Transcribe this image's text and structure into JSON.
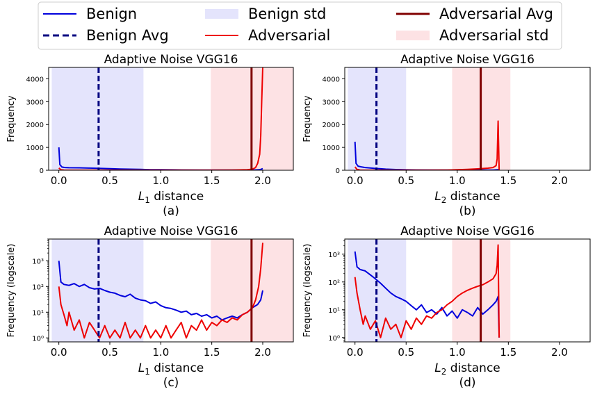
{
  "legend": {
    "placement": "top-center",
    "columns": 3,
    "entries": [
      {
        "label": "Benign",
        "style": "solid-line",
        "color": "#0000dd"
      },
      {
        "label": "Benign Avg",
        "style": "dashed-line",
        "color": "#000080"
      },
      {
        "label": "Benign std",
        "style": "patch",
        "color": "#e4e4fc"
      },
      {
        "label": "Adversarial",
        "style": "solid-line",
        "color": "#ee0000"
      },
      {
        "label": "Adversarial Avg",
        "style": "solid-line",
        "color": "#800000"
      },
      {
        "label": "Adversarial std",
        "style": "patch",
        "color": "#fde2e4"
      }
    ]
  },
  "colors": {
    "benign": "#0000dd",
    "adversarial": "#ee0000",
    "benign_avg": "#000080",
    "adversarial_avg": "#800000",
    "benign_std": "#e4e4fc",
    "adversarial_std": "#fde2e4"
  },
  "chart_data": [
    {
      "id": "a",
      "type": "line",
      "title": "Adaptive Noise VGG16",
      "xlabel_sym": "L",
      "xlabel_sub": "1",
      "xlabel_rest": " distance",
      "ylabel": "Frequency",
      "subfig": "(a)",
      "yscale": "linear",
      "xlim": [
        -0.1,
        2.3
      ],
      "ylim": [
        0,
        4500
      ],
      "xticks": [
        0.0,
        0.5,
        1.0,
        1.5,
        2.0
      ],
      "xtick_labels": [
        "0.0",
        "0.5",
        "1.0",
        "1.5",
        "2.0"
      ],
      "yticks": [
        0,
        1000,
        2000,
        3000,
        4000
      ],
      "ytick_labels": [
        "0",
        "1000",
        "2000",
        "3000",
        "4000"
      ],
      "benign_avg": 0.39,
      "adversarial_avg": 1.89,
      "benign_std": [
        -0.07,
        0.83
      ],
      "adversarial_std": [
        1.49,
        2.3
      ],
      "series": [
        {
          "name": "Benign",
          "x": [
            0.0,
            0.01,
            0.03,
            0.06,
            0.1,
            0.2,
            0.3,
            0.4,
            0.5,
            0.6,
            0.7,
            0.8,
            0.9,
            1.0,
            1.2,
            1.4,
            1.6,
            1.8,
            1.9,
            1.97,
            2.0
          ],
          "y": [
            1000,
            250,
            140,
            120,
            110,
            105,
            95,
            85,
            70,
            55,
            45,
            35,
            25,
            20,
            12,
            8,
            6,
            6,
            8,
            20,
            70
          ]
        },
        {
          "name": "Adversarial",
          "x": [
            0.0,
            0.02,
            0.05,
            0.1,
            0.3,
            0.5,
            0.8,
            1.0,
            1.2,
            1.5,
            1.7,
            1.85,
            1.9,
            1.93,
            1.95,
            1.97,
            1.98,
            1.99,
            2.0
          ],
          "y": [
            100,
            20,
            6,
            3,
            2,
            2,
            2,
            2,
            3,
            4,
            8,
            20,
            50,
            120,
            300,
            700,
            1500,
            3000,
            4500
          ]
        }
      ]
    },
    {
      "id": "b",
      "type": "line",
      "title": "Adaptive Noise VGG16",
      "xlabel_sym": "L",
      "xlabel_sub": "2",
      "xlabel_rest": " distance",
      "ylabel": "Frequency",
      "subfig": "(b)",
      "yscale": "linear",
      "xlim": [
        -0.1,
        2.3
      ],
      "ylim": [
        0,
        4500
      ],
      "xticks": [
        0.0,
        0.5,
        1.0,
        1.5,
        2.0
      ],
      "xtick_labels": [
        "0.0",
        "0.5",
        "1.0",
        "1.5",
        "2.0"
      ],
      "yticks": [
        0,
        1000,
        2000,
        3000,
        4000
      ],
      "ytick_labels": [
        "0",
        "1000",
        "2000",
        "3000",
        "4000"
      ],
      "benign_avg": 0.21,
      "adversarial_avg": 1.23,
      "benign_std": [
        -0.07,
        0.5
      ],
      "adversarial_std": [
        0.95,
        1.52
      ],
      "series": [
        {
          "name": "Benign",
          "x": [
            0.0,
            0.01,
            0.03,
            0.06,
            0.1,
            0.2,
            0.3,
            0.4,
            0.5,
            0.6,
            0.8,
            1.0,
            1.2,
            1.35,
            1.4,
            1.41
          ],
          "y": [
            1250,
            300,
            180,
            150,
            120,
            80,
            50,
            30,
            18,
            12,
            9,
            8,
            8,
            10,
            25,
            0
          ]
        },
        {
          "name": "Adversarial",
          "x": [
            0.0,
            0.02,
            0.05,
            0.1,
            0.3,
            0.5,
            0.7,
            0.9,
            1.0,
            1.1,
            1.2,
            1.3,
            1.35,
            1.38,
            1.39,
            1.4,
            1.41
          ],
          "y": [
            150,
            40,
            8,
            3,
            2,
            2,
            3,
            8,
            20,
            40,
            60,
            90,
            120,
            200,
            500,
            2150,
            0
          ]
        }
      ]
    },
    {
      "id": "c",
      "type": "line",
      "title": "Adaptive Noise VGG16",
      "xlabel_sym": "L",
      "xlabel_sub": "1",
      "xlabel_rest": " distance",
      "ylabel": "Frequency (logscale)",
      "subfig": "(c)",
      "yscale": "log",
      "xlim": [
        -0.1,
        2.3
      ],
      "ylim": [
        0.7,
        7000
      ],
      "xticks": [
        0.0,
        0.5,
        1.0,
        1.5,
        2.0
      ],
      "xtick_labels": [
        "0.0",
        "0.5",
        "1.0",
        "1.5",
        "2.0"
      ],
      "yticks": [
        1,
        10,
        100,
        1000
      ],
      "ytick_labels": [
        "10⁰",
        "10¹",
        "10²",
        "10³"
      ],
      "benign_avg": 0.39,
      "adversarial_avg": 1.89,
      "benign_std": [
        -0.07,
        0.83
      ],
      "adversarial_std": [
        1.49,
        2.3
      ],
      "series": [
        {
          "name": "Benign",
          "x": [
            0.0,
            0.02,
            0.05,
            0.1,
            0.15,
            0.2,
            0.25,
            0.3,
            0.35,
            0.4,
            0.45,
            0.5,
            0.55,
            0.6,
            0.65,
            0.7,
            0.75,
            0.8,
            0.85,
            0.9,
            0.95,
            1.0,
            1.05,
            1.1,
            1.15,
            1.2,
            1.25,
            1.3,
            1.35,
            1.4,
            1.45,
            1.5,
            1.55,
            1.6,
            1.65,
            1.7,
            1.75,
            1.8,
            1.85,
            1.9,
            1.95,
            1.98,
            2.0
          ],
          "y": [
            1000,
            150,
            120,
            110,
            130,
            100,
            120,
            90,
            80,
            85,
            70,
            60,
            55,
            45,
            40,
            50,
            35,
            30,
            28,
            22,
            25,
            18,
            15,
            14,
            12,
            10,
            11,
            8,
            9,
            7,
            8,
            6,
            7,
            5,
            6,
            7,
            6,
            8,
            10,
            15,
            20,
            30,
            70
          ]
        },
        {
          "name": "Adversarial",
          "x": [
            0.0,
            0.02,
            0.05,
            0.08,
            0.1,
            0.15,
            0.2,
            0.25,
            0.3,
            0.35,
            0.4,
            0.45,
            0.5,
            0.55,
            0.6,
            0.65,
            0.7,
            0.75,
            0.8,
            0.85,
            0.9,
            0.95,
            1.0,
            1.05,
            1.1,
            1.15,
            1.2,
            1.25,
            1.3,
            1.35,
            1.4,
            1.45,
            1.5,
            1.55,
            1.6,
            1.65,
            1.7,
            1.75,
            1.8,
            1.85,
            1.9,
            1.93,
            1.96,
            1.98,
            2.0
          ],
          "y": [
            100,
            20,
            8,
            3,
            10,
            2,
            5,
            1,
            4,
            2,
            1,
            3,
            1,
            2,
            1,
            4,
            1,
            2,
            1,
            3,
            1,
            2,
            1,
            3,
            1,
            2,
            4,
            1,
            3,
            2,
            5,
            2,
            4,
            3,
            5,
            4,
            6,
            5,
            8,
            10,
            15,
            30,
            100,
            500,
            5000
          ]
        }
      ]
    },
    {
      "id": "d",
      "type": "line",
      "title": "Adaptive Noise VGG16",
      "xlabel_sym": "L",
      "xlabel_sub": "2",
      "xlabel_rest": " distance",
      "ylabel": "Frequency (logscale)",
      "subfig": "(d)",
      "yscale": "log",
      "xlim": [
        -0.1,
        2.3
      ],
      "ylim": [
        0.7,
        3500
      ],
      "xticks": [
        0.0,
        0.5,
        1.0,
        1.5,
        2.0
      ],
      "xtick_labels": [
        "0.0",
        "0.5",
        "1.0",
        "1.5",
        "2.0"
      ],
      "yticks": [
        1,
        10,
        100,
        1000
      ],
      "ytick_labels": [
        "10⁰",
        "10¹",
        "10²",
        "10³"
      ],
      "benign_avg": 0.21,
      "adversarial_avg": 1.23,
      "benign_std": [
        -0.07,
        0.5
      ],
      "adversarial_std": [
        0.95,
        1.52
      ],
      "series": [
        {
          "name": "Benign",
          "x": [
            0.0,
            0.02,
            0.05,
            0.1,
            0.15,
            0.2,
            0.25,
            0.3,
            0.35,
            0.4,
            0.45,
            0.5,
            0.55,
            0.6,
            0.65,
            0.7,
            0.75,
            0.8,
            0.85,
            0.9,
            0.95,
            1.0,
            1.05,
            1.1,
            1.15,
            1.2,
            1.25,
            1.3,
            1.35,
            1.38,
            1.4,
            1.41
          ],
          "y": [
            1250,
            350,
            280,
            250,
            180,
            130,
            90,
            60,
            40,
            30,
            25,
            20,
            14,
            10,
            15,
            8,
            10,
            7,
            12,
            6,
            9,
            5,
            10,
            8,
            6,
            12,
            7,
            10,
            15,
            20,
            30,
            1
          ]
        },
        {
          "name": "Adversarial",
          "x": [
            0.0,
            0.02,
            0.05,
            0.08,
            0.1,
            0.15,
            0.2,
            0.25,
            0.3,
            0.35,
            0.4,
            0.45,
            0.5,
            0.55,
            0.6,
            0.65,
            0.7,
            0.75,
            0.8,
            0.85,
            0.9,
            0.95,
            1.0,
            1.05,
            1.1,
            1.15,
            1.2,
            1.25,
            1.3,
            1.35,
            1.38,
            1.39,
            1.4,
            1.41
          ],
          "y": [
            150,
            40,
            10,
            3,
            6,
            2,
            4,
            1,
            5,
            2,
            3,
            1,
            4,
            2,
            5,
            3,
            6,
            5,
            8,
            10,
            15,
            20,
            30,
            40,
            50,
            60,
            70,
            80,
            100,
            130,
            200,
            400,
            2150,
            1
          ]
        }
      ]
    }
  ]
}
